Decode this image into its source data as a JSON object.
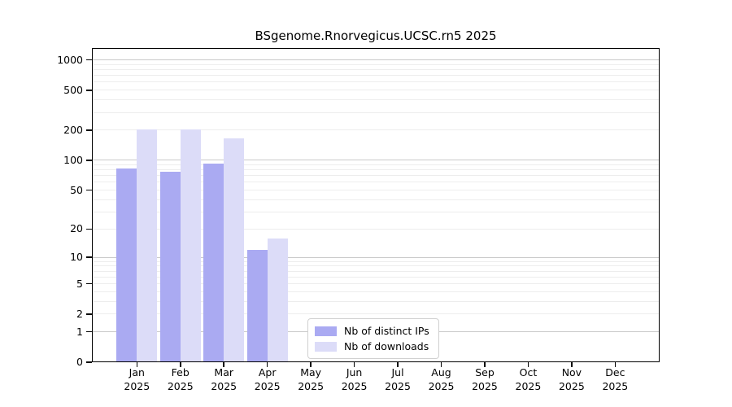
{
  "chart_data": {
    "type": "bar",
    "title": "BSgenome.Rnorvegicus.UCSC.rn5 2025",
    "categories": [
      "Jan",
      "Feb",
      "Mar",
      "Apr",
      "May",
      "Jun",
      "Jul",
      "Aug",
      "Sep",
      "Oct",
      "Nov",
      "Dec"
    ],
    "category_year": "2025",
    "series": [
      {
        "name": "Nb of distinct IPs",
        "color": "#aaaaf2",
        "values": [
          83,
          77,
          93,
          12,
          0,
          0,
          0,
          0,
          0,
          0,
          0,
          0
        ]
      },
      {
        "name": "Nb of downloads",
        "color": "#dcdcf8",
        "values": [
          205,
          205,
          165,
          16,
          0,
          0,
          0,
          0,
          0,
          0,
          0,
          0
        ]
      }
    ],
    "yscale": "log1p",
    "ylim": [
      0,
      1000
    ],
    "yticks": [
      0,
      1,
      2,
      5,
      10,
      20,
      50,
      100,
      200,
      500,
      1000
    ],
    "major_gridlines": [
      1,
      10,
      100,
      1000
    ],
    "minor_gridlines": [
      2,
      3,
      4,
      5,
      6,
      7,
      8,
      9,
      20,
      30,
      40,
      50,
      60,
      70,
      80,
      90,
      200,
      300,
      400,
      500,
      600,
      700,
      800,
      900
    ],
    "grid_major_color": "#c9c9c9",
    "grid_minor_color": "#ededed",
    "axis_color": "#000000",
    "background_color": "#ffffff",
    "legend_position": "bottom-center",
    "grid": true
  }
}
